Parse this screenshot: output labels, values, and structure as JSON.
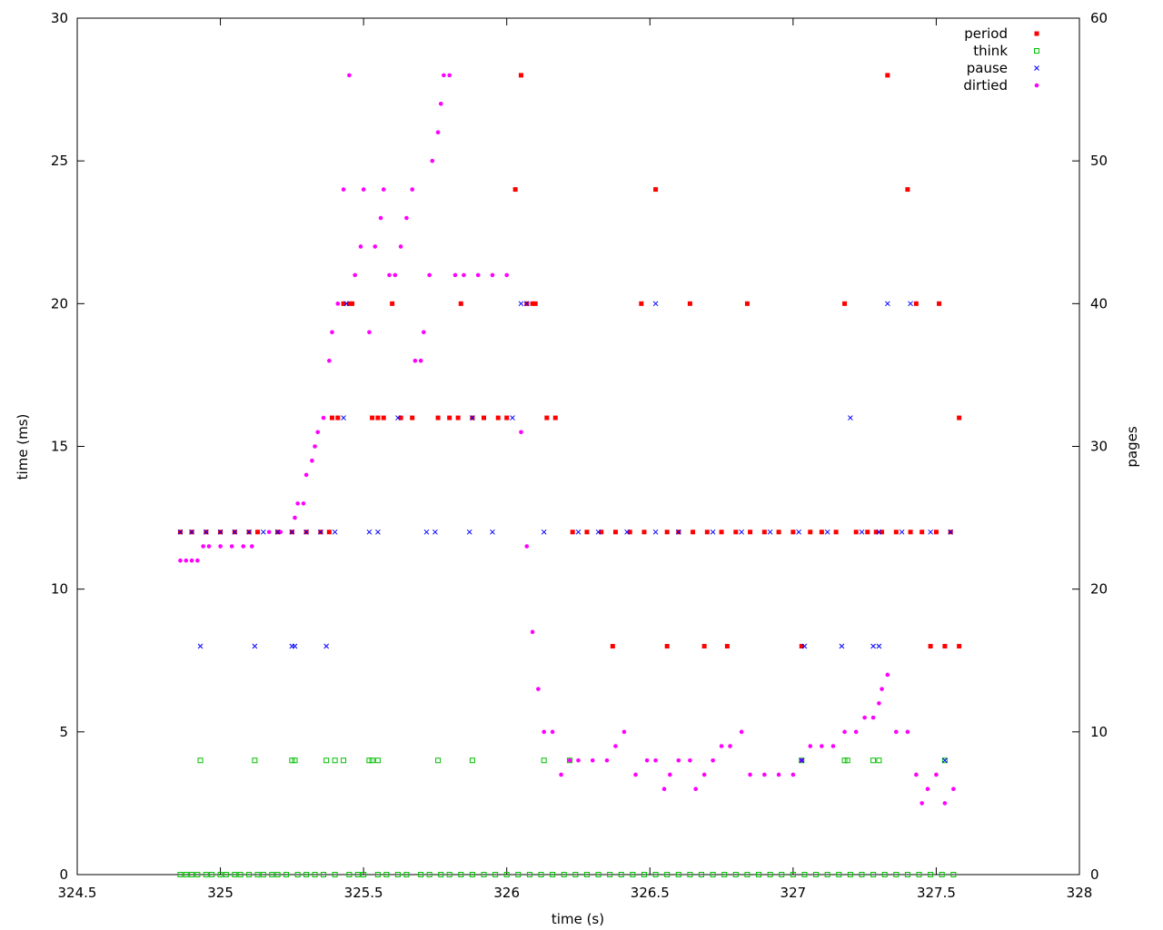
{
  "chart_data": {
    "type": "scatter",
    "title": "",
    "xlabel": "time (s)",
    "ylabel": "time (ms)",
    "y2label": "pages",
    "xlim": [
      324.5,
      328
    ],
    "ylim": [
      0,
      30
    ],
    "y2lim": [
      0,
      60
    ],
    "xticks": [
      "324.5",
      "325",
      "325.5",
      "326",
      "326.5",
      "327",
      "327.5",
      "328"
    ],
    "yticks": [
      "0",
      "5",
      "10",
      "15",
      "20",
      "25",
      "30"
    ],
    "y2ticks": [
      "0",
      "10",
      "20",
      "30",
      "40",
      "50",
      "60"
    ],
    "grid": false,
    "legend_position": "top-right",
    "series": [
      {
        "name": "period",
        "color": "#ff0000",
        "marker": "square",
        "x": [
          324.86,
          324.9,
          324.95,
          325.0,
          325.05,
          325.1,
          325.13,
          325.2,
          325.25,
          325.3,
          325.35,
          325.38,
          325.43,
          325.46,
          325.39,
          325.41,
          325.53,
          325.55,
          325.57,
          325.63,
          325.67,
          325.76,
          325.8,
          325.83,
          325.88,
          325.92,
          325.97,
          326.0,
          326.03,
          326.05,
          326.07,
          326.1,
          326.14,
          326.17,
          326.23,
          326.28,
          326.33,
          326.38,
          326.43,
          326.48,
          326.52,
          326.56,
          326.6,
          326.65,
          326.7,
          326.75,
          326.8,
          326.85,
          326.9,
          326.95,
          327.0,
          327.03,
          327.06,
          327.1,
          327.15,
          327.18,
          327.22,
          327.26,
          327.29,
          327.31,
          327.33,
          327.36,
          327.4,
          327.41,
          327.45,
          327.5,
          327.53,
          327.55,
          327.58,
          325.45,
          325.6,
          325.84,
          326.09,
          326.47,
          326.64,
          326.84,
          327.43,
          327.51,
          326.37,
          326.56,
          326.69,
          326.77,
          327.48,
          327.58
        ],
        "y": [
          12,
          12,
          12,
          12,
          12,
          12,
          12,
          12,
          12,
          12,
          12,
          12,
          20,
          20,
          16,
          16,
          16,
          16,
          16,
          16,
          16,
          16,
          16,
          16,
          16,
          16,
          16,
          16,
          24,
          28,
          20,
          20,
          16,
          16,
          12,
          12,
          12,
          12,
          12,
          12,
          24,
          12,
          12,
          12,
          12,
          12,
          12,
          12,
          12,
          12,
          12,
          8,
          12,
          12,
          12,
          20,
          12,
          12,
          12,
          12,
          28,
          12,
          24,
          12,
          12,
          12,
          8,
          12,
          8,
          20,
          20,
          20,
          20,
          20,
          20,
          20,
          20,
          20,
          8,
          8,
          8,
          8,
          8,
          16
        ]
      },
      {
        "name": "think",
        "color": "#00c000",
        "marker": "open-square",
        "x": [
          324.86,
          324.88,
          324.9,
          324.92,
          324.95,
          324.97,
          325.0,
          325.02,
          325.05,
          325.07,
          325.1,
          325.13,
          325.15,
          325.18,
          325.2,
          325.23,
          325.27,
          325.3,
          325.33,
          325.36,
          325.4,
          325.45,
          325.48,
          325.5,
          325.55,
          325.58,
          325.62,
          325.65,
          325.7,
          325.73,
          325.77,
          325.8,
          325.84,
          325.88,
          325.92,
          325.96,
          326.0,
          326.04,
          326.08,
          326.12,
          326.16,
          326.2,
          326.24,
          326.28,
          326.32,
          326.36,
          326.4,
          326.44,
          326.48,
          326.52,
          326.56,
          326.6,
          326.64,
          326.68,
          326.72,
          326.76,
          326.8,
          326.84,
          326.88,
          326.92,
          326.96,
          327.0,
          327.04,
          327.08,
          327.12,
          327.16,
          327.2,
          327.24,
          327.28,
          327.32,
          327.36,
          327.4,
          327.44,
          327.48,
          327.52,
          327.56,
          324.93,
          325.12,
          325.25,
          325.26,
          325.37,
          325.4,
          325.43,
          325.52,
          325.53,
          325.55,
          325.76,
          325.88,
          326.13,
          326.22,
          327.03,
          327.18,
          327.19,
          327.28,
          327.3,
          327.53
        ],
        "y": [
          0,
          0,
          0,
          0,
          0,
          0,
          0,
          0,
          0,
          0,
          0,
          0,
          0,
          0,
          0,
          0,
          0,
          0,
          0,
          0,
          0,
          0,
          0,
          0,
          0,
          0,
          0,
          0,
          0,
          0,
          0,
          0,
          0,
          0,
          0,
          0,
          0,
          0,
          0,
          0,
          0,
          0,
          0,
          0,
          0,
          0,
          0,
          0,
          0,
          0,
          0,
          0,
          0,
          0,
          0,
          0,
          0,
          0,
          0,
          0,
          0,
          0,
          0,
          0,
          0,
          0,
          0,
          0,
          0,
          0,
          0,
          0,
          0,
          0,
          0,
          0,
          4,
          4,
          4,
          4,
          4,
          4,
          4,
          4,
          4,
          4,
          4,
          4,
          4,
          4,
          4,
          4,
          4,
          4,
          4,
          4
        ]
      },
      {
        "name": "pause",
        "color": "#0000ff",
        "marker": "cross",
        "x": [
          324.86,
          324.9,
          324.95,
          325.0,
          325.05,
          325.1,
          325.15,
          325.2,
          325.25,
          325.3,
          325.35,
          325.4,
          325.52,
          325.55,
          325.72,
          325.75,
          325.87,
          325.95,
          326.13,
          326.25,
          326.32,
          326.42,
          326.52,
          326.6,
          326.72,
          326.82,
          326.92,
          327.02,
          327.12,
          327.24,
          327.3,
          327.38,
          327.48,
          327.55,
          324.93,
          325.12,
          325.25,
          325.26,
          325.37,
          325.44,
          326.05,
          326.07,
          326.52,
          327.04,
          327.17,
          327.28,
          327.3,
          327.33,
          327.41,
          325.43,
          325.62,
          325.88,
          326.02,
          327.2,
          327.03,
          327.53
        ],
        "y": [
          12,
          12,
          12,
          12,
          12,
          12,
          12,
          12,
          12,
          12,
          12,
          12,
          12,
          12,
          12,
          12,
          12,
          12,
          12,
          12,
          12,
          12,
          12,
          12,
          12,
          12,
          12,
          12,
          12,
          12,
          12,
          12,
          12,
          12,
          8,
          8,
          8,
          8,
          8,
          20,
          20,
          20,
          20,
          8,
          8,
          8,
          8,
          20,
          20,
          16,
          16,
          16,
          16,
          16,
          4,
          4
        ]
      },
      {
        "name": "dirtied",
        "color": "#ff00ff",
        "marker": "dot",
        "x": [
          324.86,
          324.88,
          324.9,
          324.92,
          324.94,
          324.96,
          325.0,
          325.04,
          325.08,
          325.11,
          325.13,
          325.17,
          325.21,
          325.25,
          325.26,
          325.27,
          325.29,
          325.3,
          325.32,
          325.33,
          325.34,
          325.36,
          325.38,
          325.39,
          325.41,
          325.43,
          325.45,
          325.47,
          325.49,
          325.5,
          325.52,
          325.54,
          325.56,
          325.57,
          325.59,
          325.61,
          325.63,
          325.65,
          325.67,
          325.68,
          325.7,
          325.71,
          325.73,
          325.74,
          325.76,
          325.77,
          325.78,
          325.8,
          325.82,
          325.85,
          325.9,
          325.95,
          326.0,
          326.05,
          326.07,
          326.09,
          326.11,
          326.13,
          326.16,
          326.19,
          326.22,
          326.25,
          326.3,
          326.35,
          326.38,
          326.41,
          326.45,
          326.49,
          326.52,
          326.55,
          326.57,
          326.6,
          326.64,
          326.66,
          326.69,
          326.72,
          326.75,
          326.78,
          326.82,
          326.85,
          326.9,
          326.95,
          327.0,
          327.03,
          327.06,
          327.1,
          327.14,
          327.18,
          327.22,
          327.25,
          327.28,
          327.3,
          327.31,
          327.33,
          327.36,
          327.4,
          327.43,
          327.45,
          327.47,
          327.5,
          327.53,
          327.56
        ],
        "y": [
          22,
          22,
          22,
          22,
          23,
          23,
          23,
          23,
          23,
          23,
          24,
          24,
          24,
          24,
          25,
          26,
          26,
          28,
          29,
          30,
          31,
          32,
          36,
          38,
          40,
          48,
          56,
          42,
          44,
          48,
          38,
          44,
          46,
          48,
          42,
          42,
          44,
          46,
          48,
          36,
          36,
          38,
          42,
          50,
          52,
          54,
          56,
          56,
          42,
          42,
          42,
          42,
          42,
          31,
          23,
          17,
          13,
          10,
          10,
          7,
          8,
          8,
          8,
          8,
          9,
          10,
          7,
          8,
          8,
          6,
          7,
          8,
          8,
          6,
          7,
          8,
          9,
          9,
          10,
          7,
          7,
          7,
          7,
          8,
          9,
          9,
          9,
          10,
          10,
          11,
          11,
          12,
          13,
          14,
          10,
          10,
          7,
          5,
          6,
          7,
          5,
          6
        ]
      }
    ]
  }
}
